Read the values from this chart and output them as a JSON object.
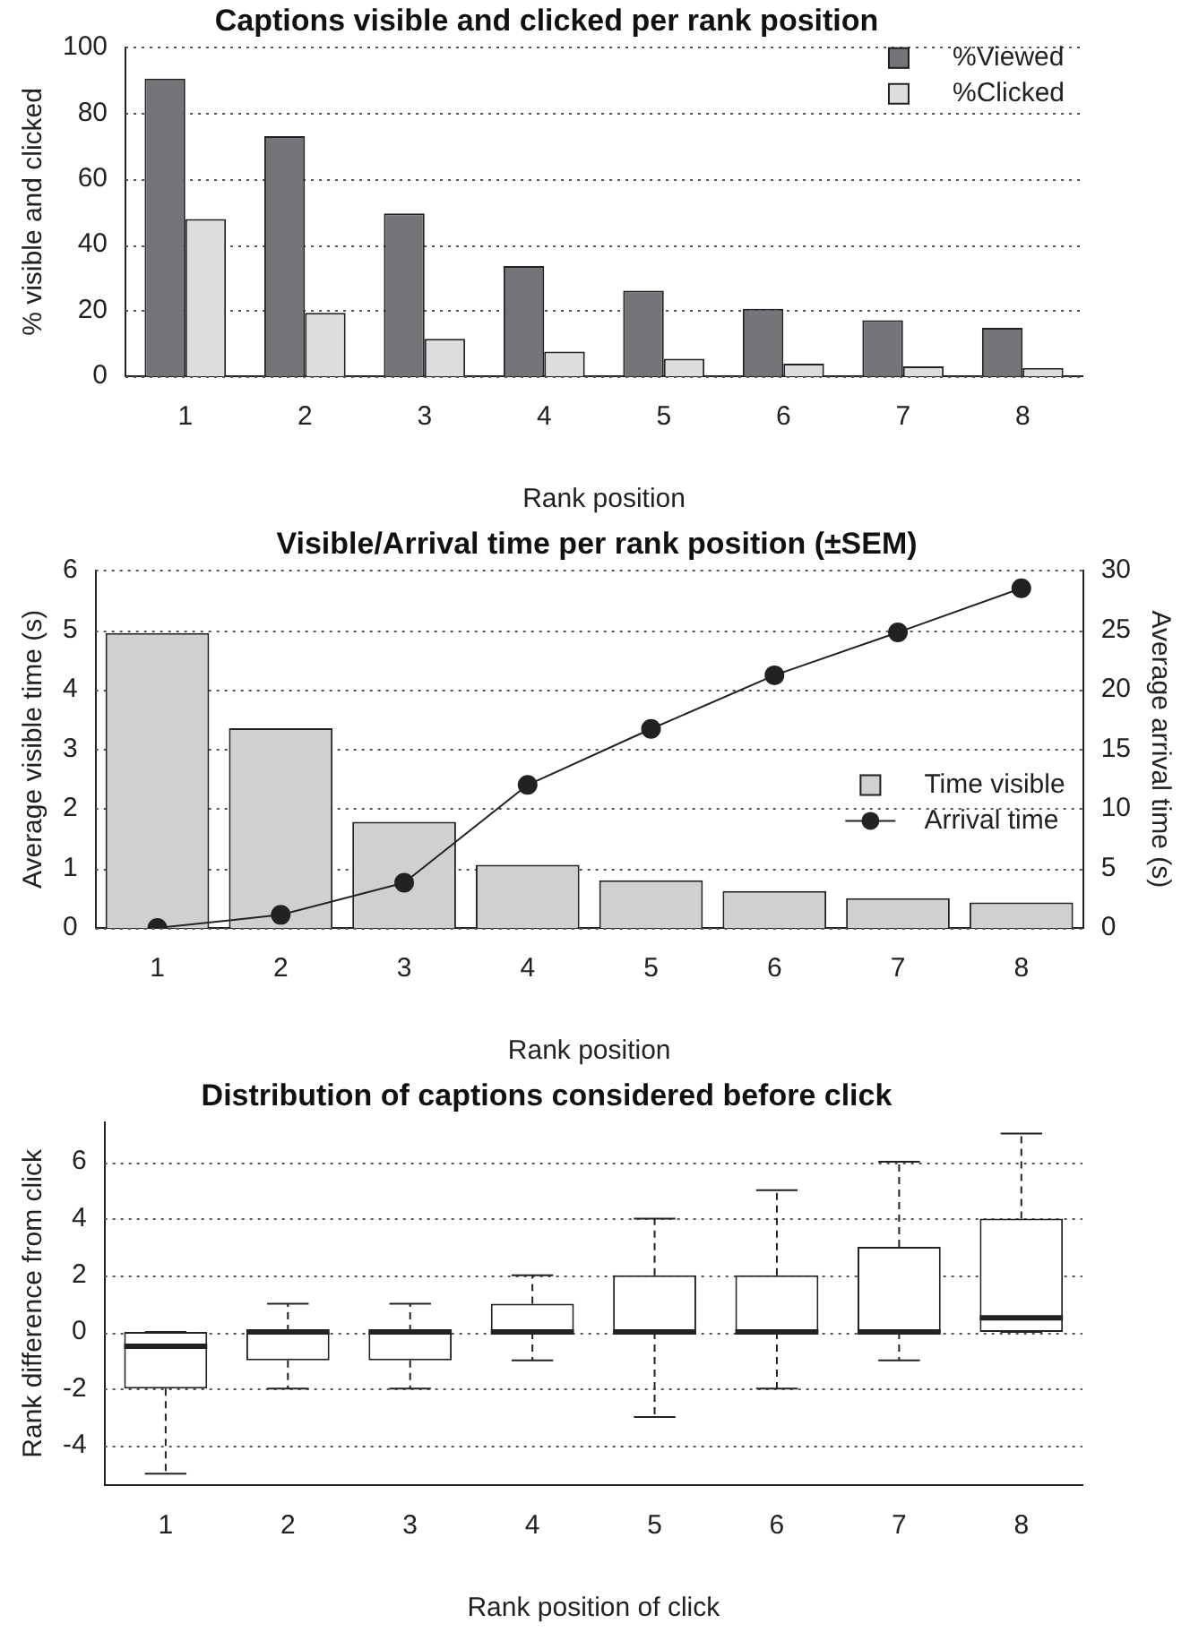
{
  "chart_data": [
    {
      "type": "bar",
      "title": "Captions visible and clicked per rank position",
      "xlabel": "Rank position",
      "ylabel": "% visible and clicked",
      "categories": [
        "1",
        "2",
        "3",
        "4",
        "5",
        "6",
        "7",
        "8"
      ],
      "series": [
        {
          "name": "%Viewed",
          "color": "#747578",
          "values": [
            90.5,
            73,
            49.5,
            33.5,
            26,
            20.5,
            17,
            14.7
          ]
        },
        {
          "name": "%Clicked",
          "color": "#dcdddf",
          "values": [
            47.8,
            19.3,
            11.4,
            7.5,
            5.3,
            3.8,
            3,
            2.5
          ]
        }
      ],
      "ylim": [
        0,
        100
      ],
      "yticks": [
        0,
        20,
        40,
        60,
        80,
        100
      ],
      "grid": "y",
      "legend": "top right"
    },
    {
      "type": "bar",
      "title": "Visible/Arrival time per rank position (±SEM)",
      "xlabel": "Rank position",
      "ylabel": "Average visible time (s)",
      "y2label": "Average arrival time (s)",
      "categories": [
        "1",
        "2",
        "3",
        "4",
        "5",
        "6",
        "7",
        "8"
      ],
      "series": [
        {
          "name": "Time visible",
          "color": "#cfd0d2",
          "values": [
            4.95,
            3.35,
            1.78,
            1.06,
            0.8,
            0.62,
            0.5,
            0.43
          ]
        },
        {
          "name": "Arrival time",
          "type": "line",
          "axis": "y2",
          "color": "#222222",
          "values": [
            0,
            1.1,
            3.8,
            12,
            16.7,
            21.2,
            24.8,
            28.5
          ]
        }
      ],
      "ylim": [
        0,
        6
      ],
      "yticks": [
        0,
        1,
        2,
        3,
        4,
        5,
        6
      ],
      "y2lim": [
        0,
        30
      ],
      "y2ticks": [
        0,
        5,
        10,
        15,
        20,
        25,
        30
      ],
      "grid": "y",
      "legend": "right",
      "marker": "circle"
    },
    {
      "type": "box",
      "title": "Distribution of captions considered before click",
      "xlabel": "Rank position of click",
      "ylabel": "Rank difference from click",
      "categories": [
        "1",
        "2",
        "3",
        "4",
        "5",
        "6",
        "7",
        "8"
      ],
      "boxes": [
        {
          "low": -5,
          "q1": -2,
          "median": -0.5,
          "q3": 0,
          "high": 0
        },
        {
          "low": -2,
          "q1": -1,
          "median": 0,
          "q3": 0,
          "high": 1
        },
        {
          "low": -2,
          "q1": -1,
          "median": 0,
          "q3": 0,
          "high": 1
        },
        {
          "low": -1,
          "q1": 0,
          "median": 0,
          "q3": 1,
          "high": 2
        },
        {
          "low": -3,
          "q1": 0,
          "median": 0,
          "q3": 2,
          "high": 4
        },
        {
          "low": -2,
          "q1": 0,
          "median": 0,
          "q3": 2,
          "high": 5
        },
        {
          "low": -1,
          "q1": 0,
          "median": 0,
          "q3": 3,
          "high": 6
        },
        {
          "low": 0,
          "q1": 0,
          "median": 0.5,
          "q3": 4,
          "high": 7
        }
      ],
      "ylim": [
        -5.4,
        7.4
      ],
      "yticks": [
        -4,
        -2,
        0,
        2,
        4,
        6
      ],
      "grid": "y"
    }
  ]
}
